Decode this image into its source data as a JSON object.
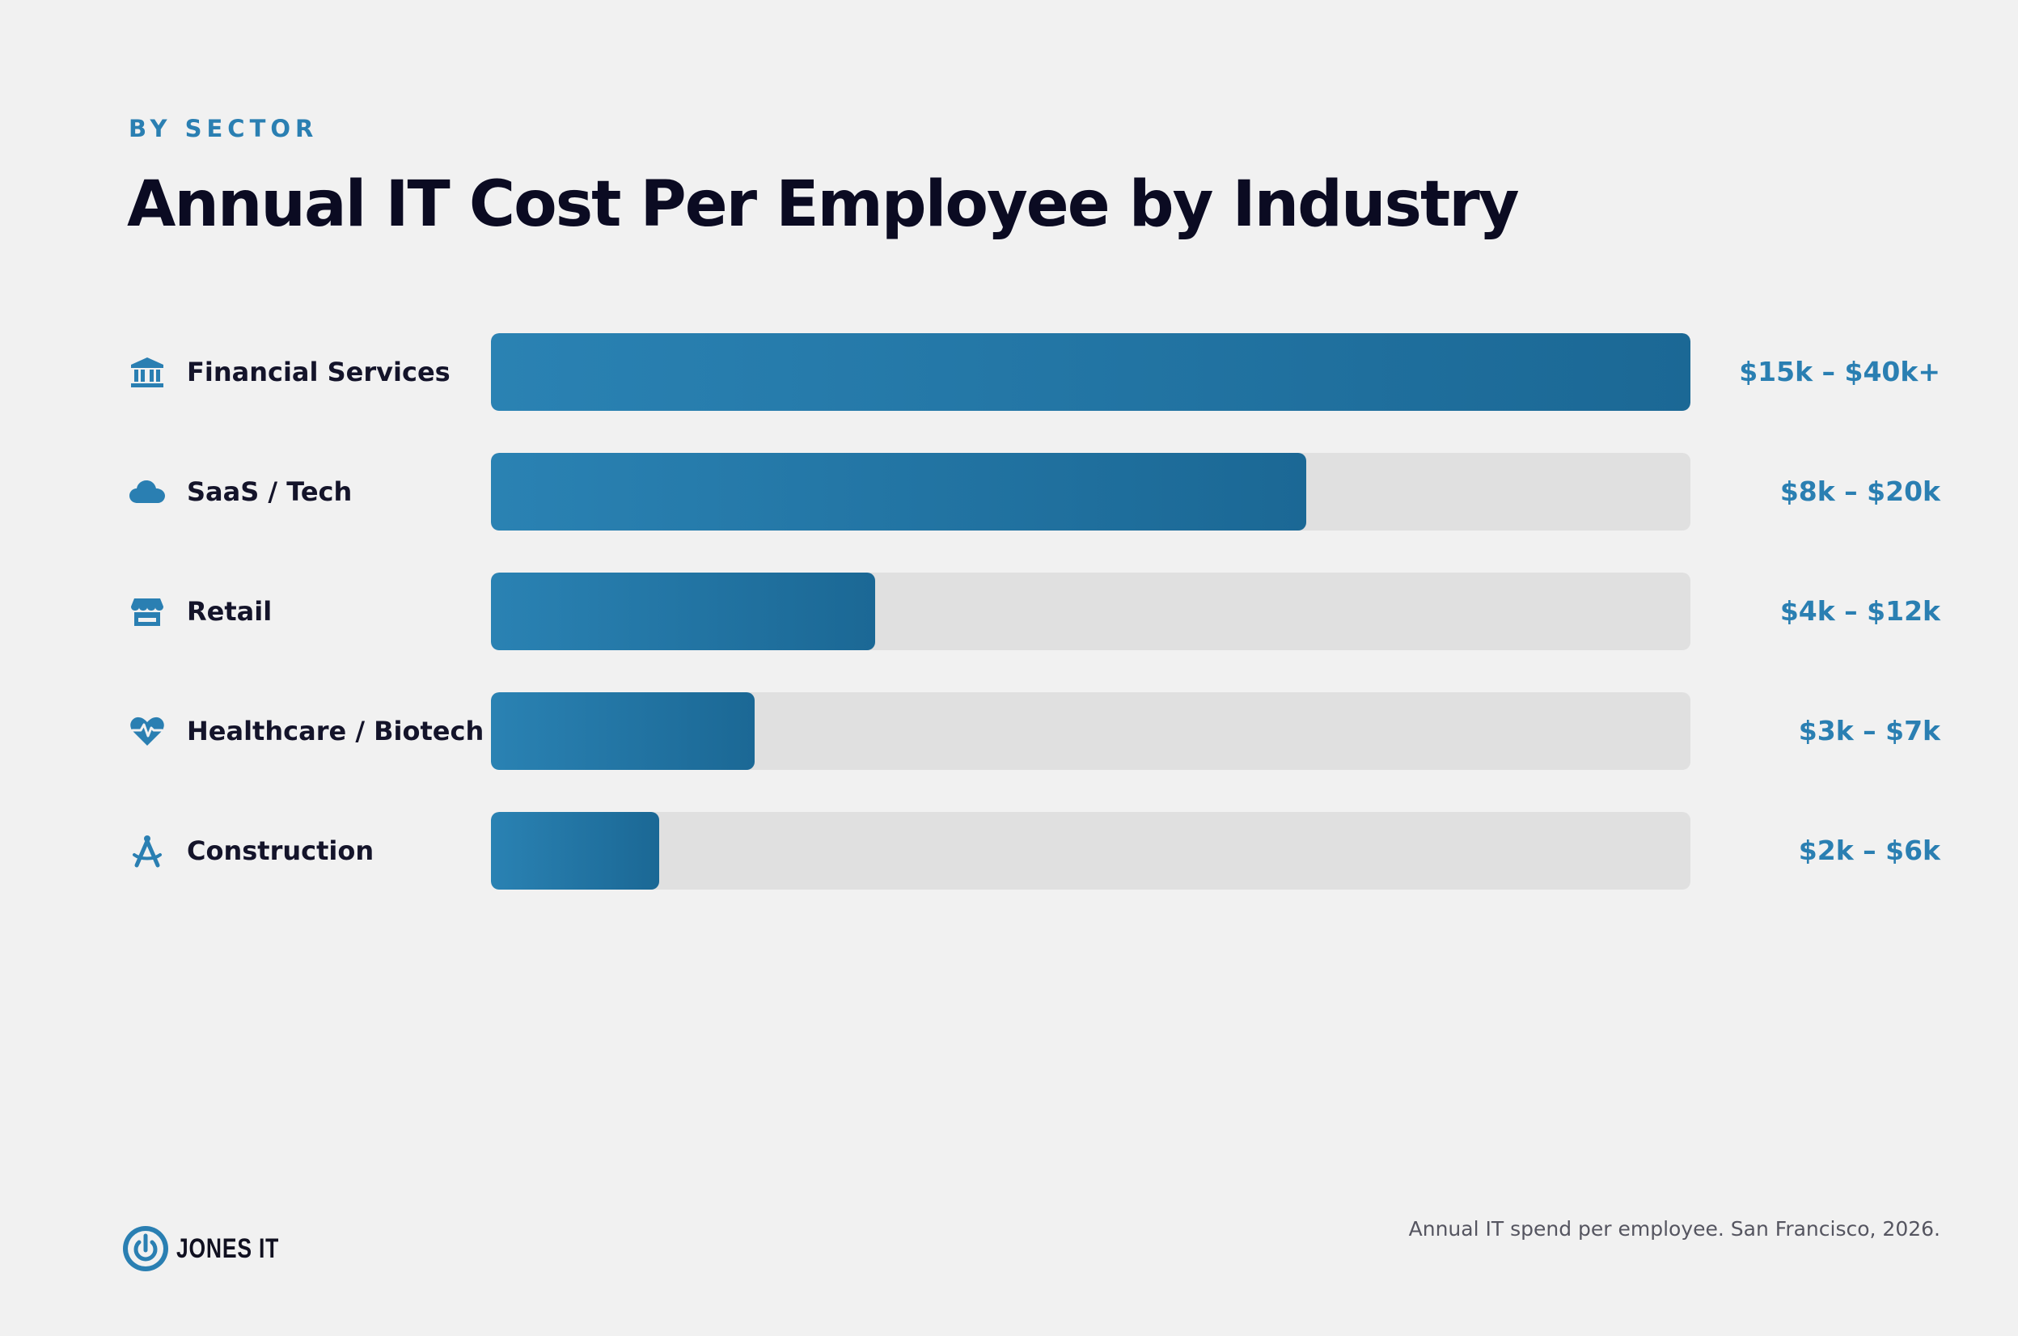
{
  "eyebrow": "BY SECTOR",
  "title": "Annual IT Cost Per Employee by Industry",
  "colors": {
    "accent": "#2a7fb2",
    "bar_start": "#2a82b3",
    "bar_end": "#1b6895",
    "track": "#e0e0e0",
    "background": "#f1f1f1",
    "title_text": "#0b0b22"
  },
  "chart_data": {
    "type": "bar",
    "orientation": "horizontal",
    "title": "Annual IT Cost Per Employee by Industry",
    "categories": [
      "Financial Services",
      "SaaS / Tech",
      "Retail",
      "Healthcare / Biotech",
      "Construction"
    ],
    "values": [
      1.0,
      0.68,
      0.32,
      0.22,
      0.14
    ],
    "value_scale": "fraction of the largest bar",
    "value_labels": [
      "$15k – $40k+",
      "$8k – $20k",
      "$4k – $12k",
      "$3k – $7k",
      "$2k – $6k"
    ],
    "icons": [
      "bank-icon",
      "cloud-icon",
      "store-icon",
      "heart-pulse-icon",
      "drafting-compass-icon"
    ],
    "xlim": [
      0,
      1
    ],
    "grid": false,
    "legend": "none"
  },
  "footer": {
    "logo_text": "JONES IT",
    "note": "Annual IT spend per employee. San Francisco, 2026."
  }
}
